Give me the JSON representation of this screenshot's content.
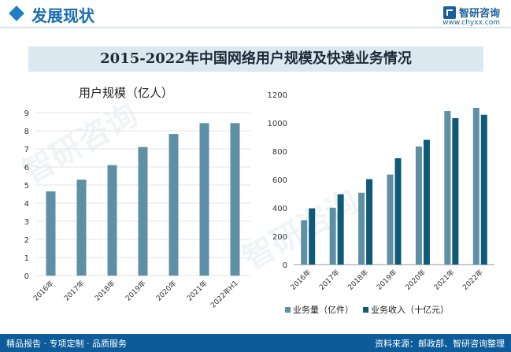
{
  "header": {
    "title": "发展现状"
  },
  "brand": {
    "name": "智研咨询",
    "url": "www.chyxx.com"
  },
  "title": "2015-2022年中国网络用户规模及快递业务情况",
  "colors": {
    "bar_a": "#5e8fa4",
    "bar_b": "#0f5a78",
    "accent": "#1a6db0"
  },
  "footer": {
    "left": "精品报告 · 专项定制 · 品质服务",
    "right": "资料来源：邮政部、智研咨询整理"
  },
  "chart_data": [
    {
      "type": "bar",
      "title": "用户规模（亿人）",
      "categories": [
        "2016年",
        "2017年",
        "2018年",
        "2019年",
        "2020年",
        "2021年",
        "2022年H1"
      ],
      "values": [
        4.65,
        5.3,
        6.1,
        7.1,
        7.82,
        8.42,
        8.42
      ],
      "ylim": [
        0,
        9
      ],
      "yticks": [
        0,
        1,
        2,
        3,
        4,
        5,
        6,
        7,
        8,
        9
      ],
      "grid": true
    },
    {
      "type": "bar",
      "title": "",
      "categories": [
        "2016年",
        "2017年",
        "2018年",
        "2019年",
        "2020年",
        "2021年",
        "2022年"
      ],
      "series": [
        {
          "name": "业务量（亿件）",
          "values": [
            313,
            401,
            507,
            635,
            833,
            1083,
            1106
          ]
        },
        {
          "name": "业务收入（十亿元）",
          "values": [
            397,
            496,
            603,
            750,
            880,
            1033,
            1057
          ]
        }
      ],
      "ylim": [
        0,
        1200
      ],
      "yticks": [
        0,
        200,
        400,
        600,
        800,
        1000,
        1200
      ],
      "legend": "bottom-left",
      "grid": false
    }
  ]
}
